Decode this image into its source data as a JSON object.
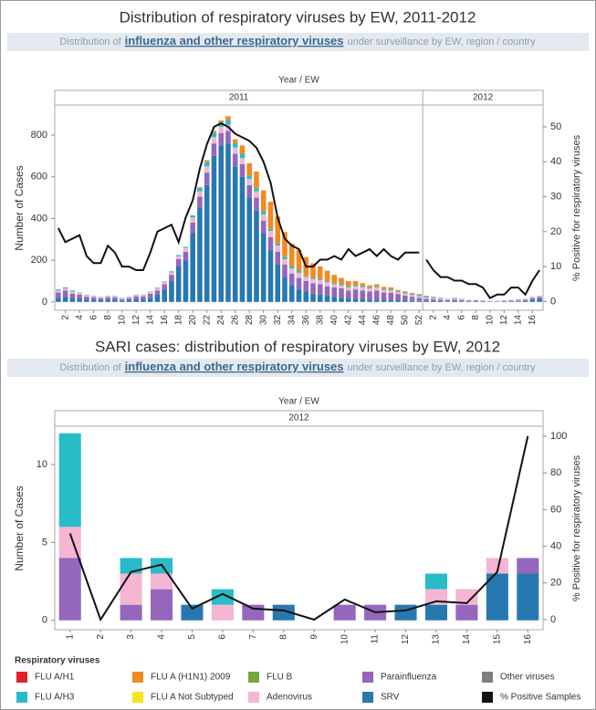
{
  "chart_data": [
    {
      "type": "bar",
      "stacked": true,
      "title": "Distribution of respiratory viruses by EW, 2011-2012",
      "subtitle": {
        "prefix": "Distribution of",
        "link": "influenza and other respiratory viruses",
        "suffix": "under surveillance by EW, region / country"
      },
      "x_title": "Year / EW",
      "ylabel": "Number of Cases",
      "y2label": "% Positive for respiratory viruses",
      "ylim": [
        -40,
        940
      ],
      "yticks": [
        0,
        200,
        400,
        600,
        800
      ],
      "y2lim": [
        -2.5,
        56
      ],
      "y2ticks": [
        0,
        10,
        20,
        30,
        40,
        50
      ],
      "panels": [
        {
          "label": "2011",
          "categories": [
            null,
            "2",
            null,
            "4",
            null,
            "6",
            null,
            "8",
            null,
            "10",
            null,
            "12",
            null,
            "14",
            null,
            "16",
            null,
            "18",
            null,
            "20",
            null,
            "22",
            null,
            "24",
            null,
            "26",
            null,
            "28",
            null,
            "30",
            null,
            "32",
            null,
            "34",
            null,
            "36",
            null,
            "38",
            null,
            "40",
            null,
            "42",
            null,
            "44",
            null,
            "46",
            null,
            "48",
            null,
            "50",
            null,
            "52"
          ],
          "series": [
            {
              "color": "#2878b0",
              "values": [
                20,
                25,
                20,
                15,
                10,
                10,
                8,
                10,
                10,
                5,
                8,
                12,
                12,
                20,
                35,
                60,
                100,
                170,
                200,
                330,
                450,
                560,
                700,
                750,
                760,
                650,
                600,
                500,
                440,
                330,
                250,
                180,
                120,
                80,
                60,
                50,
                40,
                35,
                30,
                25,
                20,
                15,
                15,
                15,
                10,
                10,
                10,
                8,
                8,
                6,
                5,
                5
              ]
            },
            {
              "color": "#9467bd",
              "values": [
                25,
                30,
                20,
                20,
                15,
                12,
                10,
                12,
                12,
                8,
                10,
                15,
                15,
                20,
                20,
                25,
                30,
                35,
                40,
                50,
                55,
                60,
                60,
                60,
                60,
                60,
                60,
                60,
                60,
                60,
                60,
                60,
                60,
                55,
                55,
                50,
                50,
                50,
                45,
                45,
                45,
                40,
                45,
                40,
                40,
                45,
                35,
                35,
                30,
                25,
                20,
                15
              ]
            },
            {
              "color": "#f4b6d2",
              "values": [
                10,
                10,
                10,
                8,
                8,
                6,
                6,
                6,
                6,
                5,
                5,
                6,
                6,
                8,
                10,
                10,
                12,
                15,
                20,
                25,
                25,
                30,
                30,
                30,
                30,
                30,
                30,
                30,
                30,
                30,
                30,
                30,
                25,
                25,
                25,
                20,
                20,
                20,
                20,
                15,
                15,
                15,
                15,
                15,
                15,
                15,
                12,
                12,
                10,
                10,
                8,
                8
              ]
            },
            {
              "color": "#28bcc8",
              "values": [
                5,
                5,
                5,
                2,
                2,
                2,
                1,
                2,
                2,
                2,
                2,
                2,
                2,
                2,
                3,
                3,
                5,
                5,
                5,
                10,
                15,
                20,
                20,
                20,
                20,
                20,
                20,
                15,
                15,
                15,
                10,
                10,
                10,
                10,
                10,
                5,
                5,
                5,
                5,
                5,
                5,
                5,
                5,
                5,
                5,
                5,
                5,
                5,
                5,
                5,
                5,
                5
              ]
            },
            {
              "color": "#f28a1e",
              "values": [
                0,
                0,
                0,
                0,
                0,
                0,
                0,
                0,
                0,
                0,
                0,
                0,
                0,
                0,
                0,
                0,
                0,
                0,
                0,
                0,
                5,
                10,
                10,
                10,
                20,
                20,
                40,
                60,
                80,
                100,
                130,
                130,
                120,
                110,
                100,
                90,
                70,
                60,
                50,
                40,
                30,
                25,
                20,
                15,
                10,
                10,
                10,
                10,
                5,
                5,
                5,
                5
              ]
            }
          ],
          "line": {
            "color": "#111111",
            "axis": "y2",
            "values": [
              21,
              17,
              18,
              19,
              13,
              11,
              11,
              16,
              14,
              10,
              10,
              9,
              9,
              14,
              20,
              21,
              22,
              17,
              24,
              29,
              38,
              45,
              50,
              51,
              50,
              48,
              47,
              46,
              44,
              40,
              34,
              24,
              18,
              16,
              15,
              10,
              10,
              12,
              12,
              13,
              12,
              15,
              13,
              14,
              15,
              13,
              15,
              13,
              12,
              14,
              14,
              14
            ]
          }
        },
        {
          "label": "2012",
          "categories": [
            null,
            "2",
            null,
            "4",
            null,
            "6",
            null,
            "8",
            null,
            "10",
            null,
            "12",
            null,
            "14",
            null,
            "16",
            null
          ],
          "series": [
            {
              "color": "#2878b0",
              "values": [
                5,
                5,
                4,
                3,
                4,
                3,
                2,
                2,
                1,
                1,
                1,
                2,
                2,
                3,
                5,
                10,
                15
              ]
            },
            {
              "color": "#9467bd",
              "values": [
                10,
                8,
                7,
                6,
                7,
                5,
                4,
                4,
                3,
                2,
                2,
                3,
                4,
                4,
                5,
                8,
                8
              ]
            },
            {
              "color": "#f4b6d2",
              "values": [
                8,
                6,
                5,
                4,
                5,
                4,
                3,
                3,
                3,
                1,
                1,
                2,
                3,
                3,
                3,
                4,
                4
              ]
            },
            {
              "color": "#28bcc8",
              "values": [
                5,
                4,
                3,
                2,
                3,
                2,
                1,
                1,
                1,
                1,
                1,
                1,
                1,
                2,
                2,
                2,
                2
              ]
            },
            {
              "color": "#f28a1e",
              "values": [
                2,
                2,
                1,
                0,
                1,
                1,
                0,
                0,
                0,
                0,
                0,
                0,
                0,
                1,
                0,
                1,
                1
              ]
            }
          ],
          "line": {
            "color": "#111111",
            "axis": "y2",
            "values": [
              12,
              9,
              7,
              7,
              6,
              6,
              5,
              5,
              4,
              1,
              2,
              2,
              4,
              4,
              2,
              6,
              9
            ]
          }
        }
      ]
    },
    {
      "type": "bar",
      "stacked": true,
      "title": "SARI cases: distribution of respiratory viruses by EW, 2012",
      "subtitle": {
        "prefix": "Distribution of",
        "link": "influenza and other respiratory viruses",
        "suffix": "under surveillance by EW, region / country"
      },
      "x_title": "Year / EW",
      "ylabel": "Number of Cases",
      "y2label": "% Positive for respiratory viruses",
      "ylim": [
        -0.6,
        12.4
      ],
      "yticks": [
        0,
        5,
        10
      ],
      "y2lim": [
        -5.5,
        105
      ],
      "y2ticks": [
        0,
        20,
        40,
        60,
        80,
        100
      ],
      "panels": [
        {
          "label": "2012",
          "categories": [
            "1",
            "2",
            "3",
            "4",
            "5",
            "6",
            "7",
            "8",
            "9",
            "10",
            "11",
            "12",
            "13",
            "14",
            "15",
            "16"
          ],
          "series": [
            {
              "color": "#2878b0",
              "values": [
                0,
                0,
                0,
                0,
                1,
                0,
                0,
                1,
                0,
                0,
                0,
                1,
                1,
                0,
                3,
                3
              ]
            },
            {
              "color": "#9467bd",
              "values": [
                4,
                0,
                1,
                2,
                0,
                0,
                1,
                0,
                0,
                1,
                1,
                0,
                0,
                1,
                0,
                1
              ]
            },
            {
              "color": "#f4b6d2",
              "values": [
                2,
                0,
                2,
                1,
                0,
                1,
                0,
                0,
                0,
                0,
                0,
                0,
                1,
                1,
                1,
                0
              ]
            },
            {
              "color": "#28bcc8",
              "values": [
                6,
                0,
                1,
                1,
                0,
                1,
                0,
                0,
                0,
                0,
                0,
                0,
                1,
                0,
                0,
                0
              ]
            }
          ],
          "line": {
            "color": "#111111",
            "axis": "y2",
            "values": [
              47,
              0,
              26,
              30,
              6,
              14,
              6,
              5,
              0,
              11,
              4,
              5,
              10,
              9,
              26,
              100
            ]
          }
        }
      ]
    }
  ],
  "legend": {
    "title": "Respiratory viruses",
    "items": [
      {
        "name": "FLU A/H1",
        "color": "#e0202a"
      },
      {
        "name": "FLU A (H1N1) 2009",
        "color": "#f28a1e"
      },
      {
        "name": "FLU B",
        "color": "#74a83c"
      },
      {
        "name": "Parainfluenza",
        "color": "#9467bd"
      },
      {
        "name": "Other viruses",
        "color": "#7f7f7f"
      },
      {
        "name": "FLU A/H3",
        "color": "#28bcc8"
      },
      {
        "name": "FLU A Not Subtyped",
        "color": "#f5e61e"
      },
      {
        "name": "Adenovirus",
        "color": "#f4b6d2"
      },
      {
        "name": "SRV",
        "color": "#2878b0"
      },
      {
        "name": "% Positive Samples",
        "color": "#111111"
      }
    ]
  }
}
